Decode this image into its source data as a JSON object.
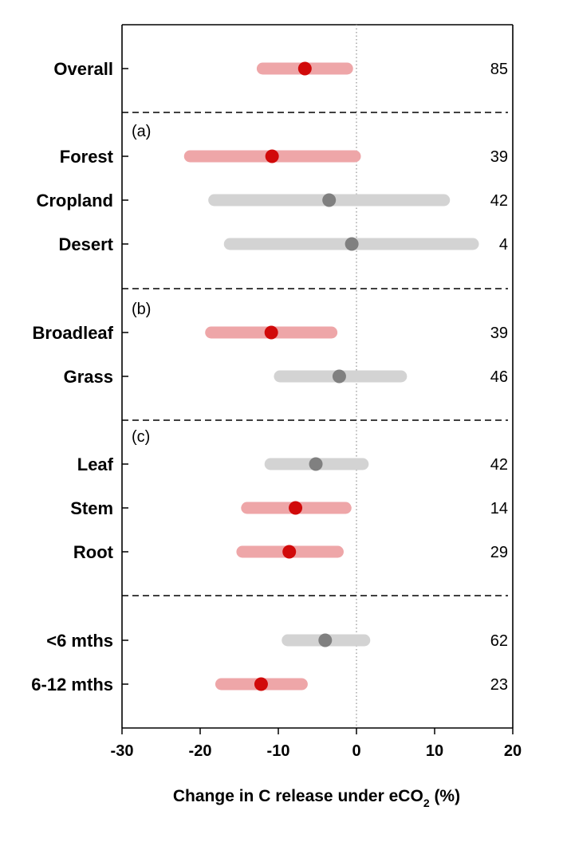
{
  "chart_data": {
    "type": "forest-plot",
    "title": "",
    "xlabel": {
      "prefix": "Change in C release under eCO",
      "subscript": "2",
      "suffix": " (%)"
    },
    "ylabel": "",
    "xlim": [
      -30,
      20
    ],
    "xticks": [
      -30,
      -20,
      -10,
      0,
      10,
      20
    ],
    "grid": false,
    "reference_line_x": 0,
    "colors": {
      "significant_bar": "#eea6a8",
      "significant_point": "#d10a0a",
      "nonsignificant_bar": "#d3d3d3",
      "nonsignificant_point": "#808080",
      "axis": "#000000",
      "separator": "#000000",
      "reference_line": "#a0a0a0"
    },
    "groups": [
      {
        "label": "",
        "rows": [
          {
            "category": "Overall",
            "mean": -6.6,
            "ci_low": -12.0,
            "ci_high": -1.2,
            "n": "85",
            "significant": true
          }
        ]
      },
      {
        "label": "(a)",
        "rows": [
          {
            "category": "Forest",
            "mean": -10.8,
            "ci_low": -21.3,
            "ci_high": -0.2,
            "n": "39",
            "significant": true
          },
          {
            "category": "Cropland",
            "mean": -3.5,
            "ci_low": -18.2,
            "ci_high": 11.2,
            "n": "42",
            "significant": false
          },
          {
            "category": "Desert",
            "mean": -0.6,
            "ci_low": -16.2,
            "ci_high": 14.9,
            "n": "4",
            "significant": false
          }
        ]
      },
      {
        "label": "(b)",
        "rows": [
          {
            "category": "Broadleaf",
            "mean": -10.9,
            "ci_low": -18.6,
            "ci_high": -3.2,
            "n": "39",
            "significant": true
          },
          {
            "category": "Grass",
            "mean": -2.2,
            "ci_low": -9.8,
            "ci_high": 5.7,
            "n": "46",
            "significant": false
          }
        ]
      },
      {
        "label": "(c)",
        "rows": [
          {
            "category": "Leaf",
            "mean": -5.2,
            "ci_low": -11.0,
            "ci_high": 0.8,
            "n": "42",
            "significant": false
          },
          {
            "category": "Stem",
            "mean": -7.8,
            "ci_low": -14.0,
            "ci_high": -1.4,
            "n": "14",
            "significant": true
          },
          {
            "category": "Root",
            "mean": -8.6,
            "ci_low": -14.6,
            "ci_high": -2.4,
            "n": "29",
            "significant": true
          }
        ]
      },
      {
        "label": "",
        "rows": [
          {
            "category": "<6 mths",
            "mean": -4.0,
            "ci_low": -8.8,
            "ci_high": 1.0,
            "n": "62",
            "significant": false
          },
          {
            "category": "6-12 mths",
            "mean": -12.2,
            "ci_low": -17.3,
            "ci_high": -7.0,
            "n": "23",
            "significant": true
          }
        ]
      }
    ]
  }
}
